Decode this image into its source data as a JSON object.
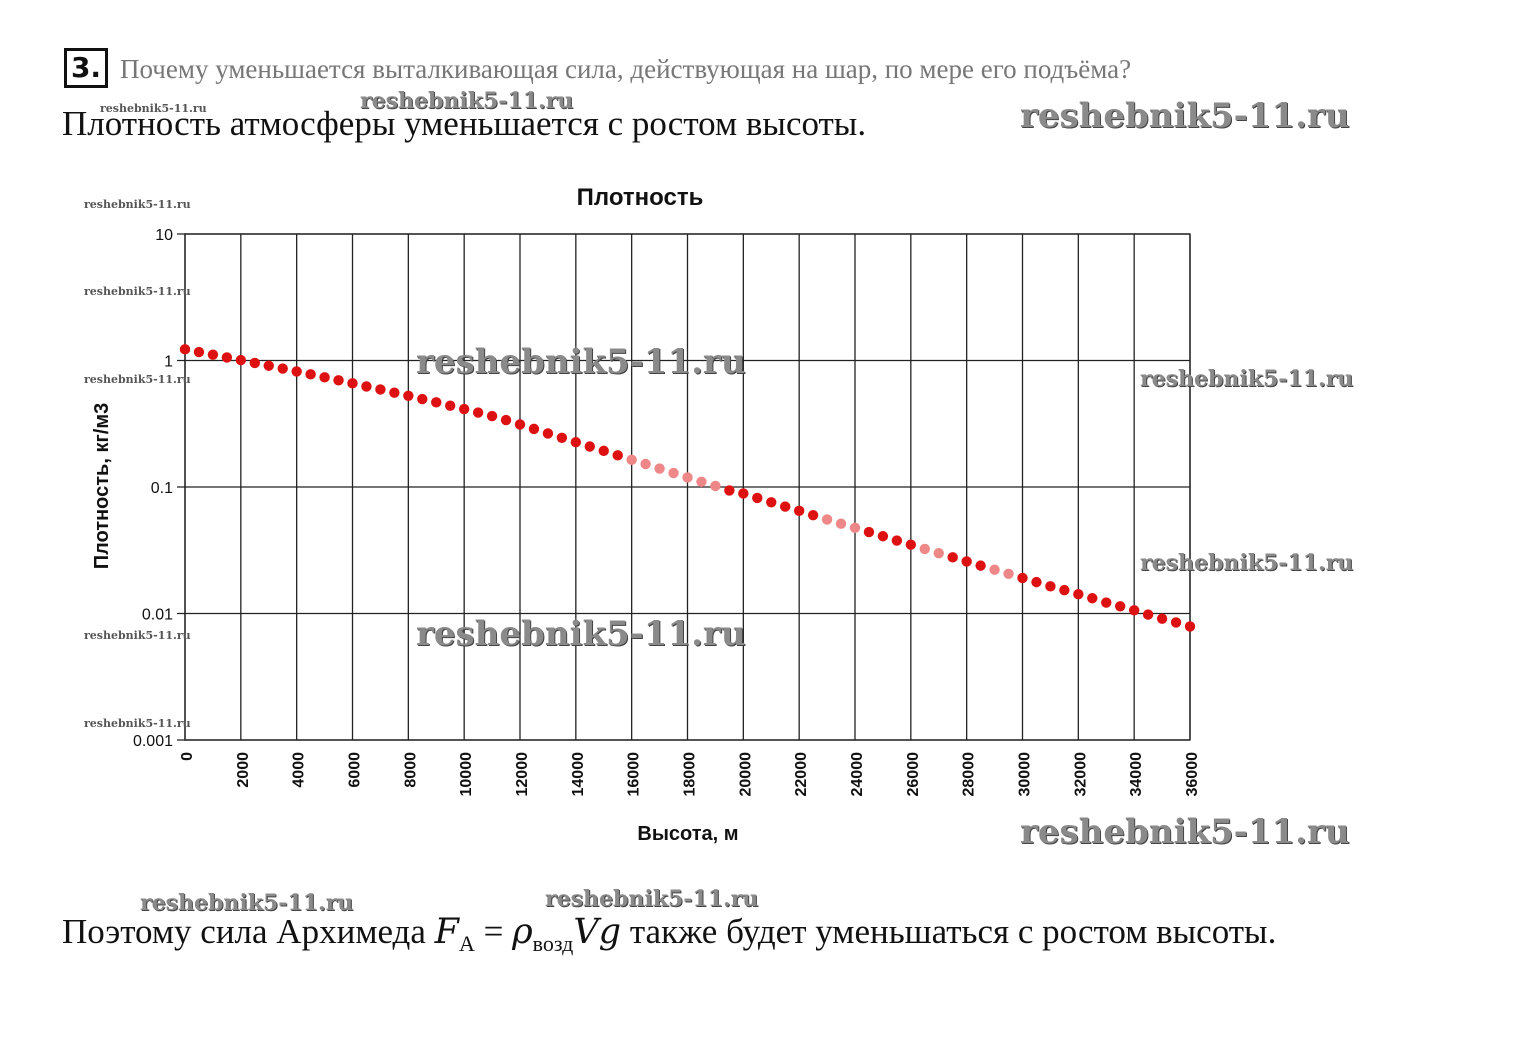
{
  "task": {
    "number": "3.",
    "question": "Почему уменьшается выталкивающая сила, действующая на шар, по мере его подъёма?"
  },
  "answer": "Плотность атмосферы уменьшается с ростом высоты.",
  "conclusion": {
    "before": "Поэтому сила Архимеда ",
    "formula_lhs": "F",
    "formula_lhs_sub": "A",
    "equals": " = ",
    "rho": "ρ",
    "rho_sub": "возд",
    "vg": "Vg",
    "after": " также будет уменьшаться с ростом высоты."
  },
  "watermark_text": "reshebnik5-11.ru",
  "colors": {
    "series": "#dd1111",
    "series_faded": "#ee8888",
    "grid": "#222222",
    "axis_text": "#111111"
  },
  "chart_data": {
    "type": "scatter",
    "title": "Плотность",
    "xlabel": "Высота, м",
    "ylabel": "Плотность, кг/м3",
    "xlim": [
      0,
      36000
    ],
    "ylim": [
      0.001,
      10
    ],
    "y_scale": "log",
    "grid": true,
    "x_ticks": [
      "0",
      "2000",
      "4000",
      "6000",
      "8000",
      "10000",
      "12000",
      "14000",
      "16000",
      "18000",
      "20000",
      "22000",
      "24000",
      "26000",
      "28000",
      "30000",
      "32000",
      "34000",
      "36000"
    ],
    "y_ticks": [
      "10",
      "1",
      "0.1",
      "0.01",
      "0.001"
    ],
    "series": [
      {
        "x": [
          0,
          500,
          1000,
          1500,
          2000,
          2500,
          3000,
          3500,
          4000,
          4500,
          5000,
          5500,
          6000,
          6500,
          7000,
          7500,
          8000,
          8500,
          9000,
          9500,
          10000,
          10500,
          11000,
          11500,
          12000,
          12500,
          13000,
          13500,
          14000,
          14500,
          15000,
          15500,
          16000,
          16500,
          17000,
          17500,
          18000,
          18500,
          19000,
          19500,
          20000,
          20500,
          21000,
          21500,
          22000,
          22500,
          23000,
          23500,
          24000,
          24500,
          25000,
          25500,
          26000,
          26500,
          27000,
          27500,
          28000,
          28500,
          29000,
          29500,
          30000,
          30500,
          31000,
          31500,
          32000,
          32500,
          33000,
          33500,
          34000,
          34500,
          35000,
          35500,
          36000
        ],
        "y": [
          1.225,
          1.167,
          1.112,
          1.058,
          1.007,
          0.957,
          0.909,
          0.863,
          0.819,
          0.777,
          0.736,
          0.697,
          0.66,
          0.624,
          0.59,
          0.557,
          0.526,
          0.496,
          0.467,
          0.439,
          0.413,
          0.388,
          0.364,
          0.338,
          0.312,
          0.288,
          0.265,
          0.245,
          0.226,
          0.209,
          0.193,
          0.178,
          0.164,
          0.152,
          0.14,
          0.129,
          0.119,
          0.11,
          0.102,
          0.094,
          0.0889,
          0.0819,
          0.0757,
          0.07,
          0.0648,
          0.0599,
          0.0554,
          0.0513,
          0.0476,
          0.044,
          0.0408,
          0.0377,
          0.035,
          0.0324,
          0.03,
          0.0278,
          0.0258,
          0.0239,
          0.0222,
          0.0206,
          0.0191,
          0.0177,
          0.0164,
          0.0153,
          0.0142,
          0.0132,
          0.0122,
          0.0114,
          0.0106,
          0.0098,
          0.0091,
          0.0085,
          0.0079
        ]
      }
    ]
  }
}
